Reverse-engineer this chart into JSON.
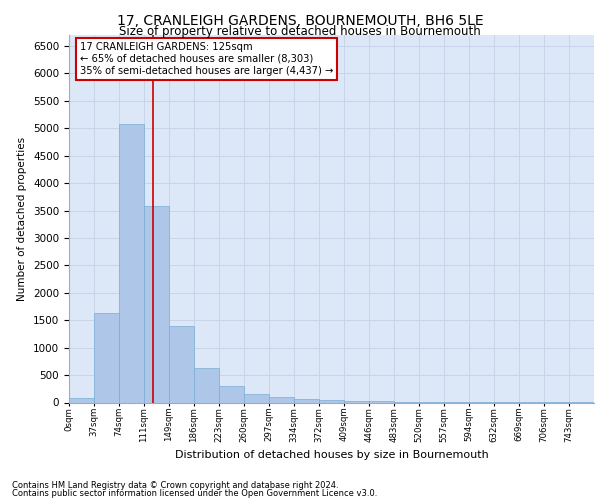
{
  "title": "17, CRANLEIGH GARDENS, BOURNEMOUTH, BH6 5LE",
  "subtitle": "Size of property relative to detached houses in Bournemouth",
  "xlabel": "Distribution of detached houses by size in Bournemouth",
  "ylabel": "Number of detached properties",
  "bin_labels": [
    "0sqm",
    "37sqm",
    "74sqm",
    "111sqm",
    "149sqm",
    "186sqm",
    "223sqm",
    "260sqm",
    "297sqm",
    "334sqm",
    "372sqm",
    "409sqm",
    "446sqm",
    "483sqm",
    "520sqm",
    "557sqm",
    "594sqm",
    "632sqm",
    "669sqm",
    "706sqm",
    "743sqm"
  ],
  "bar_values": [
    75,
    1625,
    5075,
    3575,
    1400,
    625,
    300,
    150,
    100,
    60,
    40,
    30,
    25,
    15,
    10,
    8,
    5,
    4,
    3,
    2,
    2
  ],
  "bar_color": "#aec6e8",
  "bar_edge_color": "#7aadd4",
  "vline_color": "#cc0000",
  "annotation_text": "17 CRANLEIGH GARDENS: 125sqm\n← 65% of detached houses are smaller (8,303)\n35% of semi-detached houses are larger (4,437) →",
  "annotation_box_color": "#ffffff",
  "annotation_box_edge_color": "#cc0000",
  "ylim": [
    0,
    6700
  ],
  "yticks": [
    0,
    500,
    1000,
    1500,
    2000,
    2500,
    3000,
    3500,
    4000,
    4500,
    5000,
    5500,
    6000,
    6500
  ],
  "grid_color": "#c8d4e8",
  "background_color": "#dce8f8",
  "footer_line1": "Contains HM Land Registry data © Crown copyright and database right 2024.",
  "footer_line2": "Contains public sector information licensed under the Open Government Licence v3.0."
}
